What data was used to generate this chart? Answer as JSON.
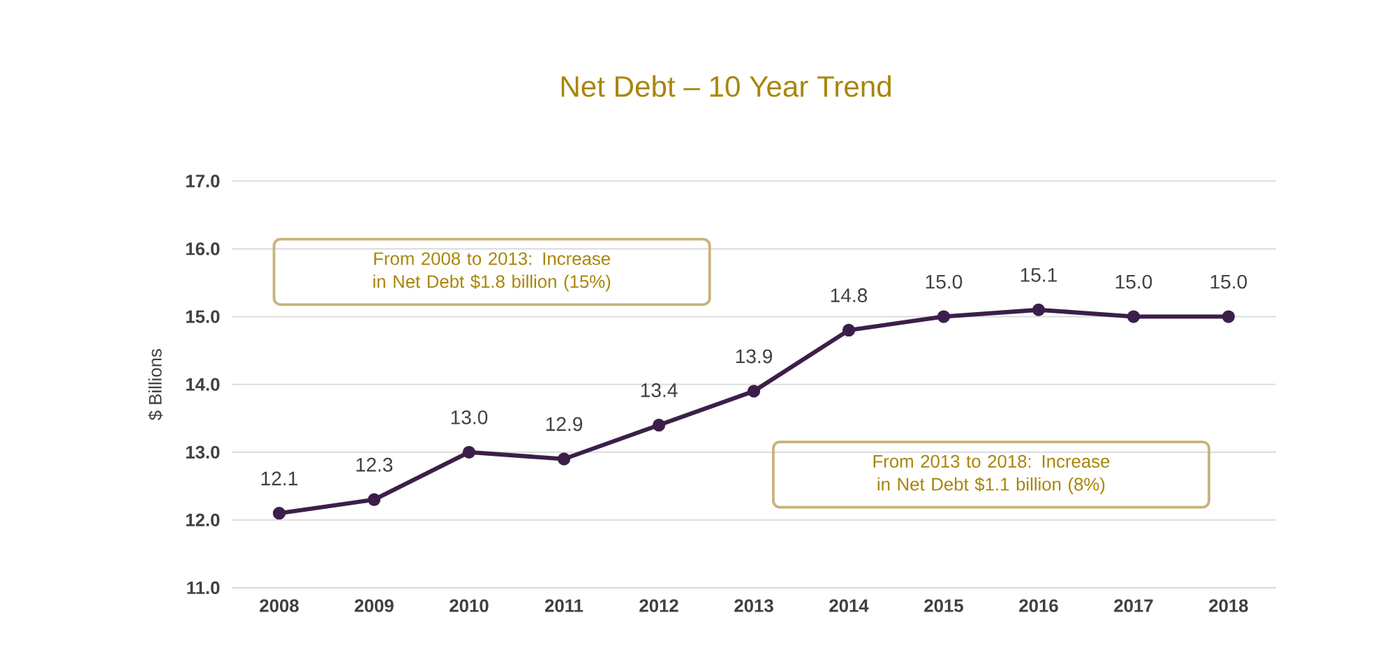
{
  "chart_data": {
    "type": "line",
    "title": "Net Debt – 10 Year Trend",
    "ylabel": "$ Billions",
    "categories": [
      "2008",
      "2009",
      "2010",
      "2011",
      "2012",
      "2013",
      "2014",
      "2015",
      "2016",
      "2017",
      "2018"
    ],
    "series": [
      {
        "color": "#3b1f4a",
        "values": [
          12.1,
          12.3,
          13.0,
          12.9,
          13.4,
          13.9,
          14.8,
          15.0,
          15.1,
          15.0,
          15.0
        ],
        "value_labels": [
          "12.1",
          "12.3",
          "13.0",
          "12.9",
          "13.4",
          "13.9",
          "14.8",
          "15.0",
          "15.1",
          "15.0",
          "15.0"
        ]
      }
    ],
    "ylim": [
      11,
      17
    ],
    "yticks": [
      {
        "value": 11,
        "label": "11.0"
      },
      {
        "value": 12,
        "label": "12.0"
      },
      {
        "value": 13,
        "label": "13.0"
      },
      {
        "value": 14,
        "label": "14.0"
      },
      {
        "value": 15,
        "label": "15.0"
      },
      {
        "value": 16,
        "label": "16.0"
      },
      {
        "value": 17,
        "label": "17.0"
      }
    ],
    "grid": "y",
    "marker": "circle",
    "line_style": "solid",
    "annotations": [
      "From 2008 to 2013: Increase in Net Debt $1.8 billion (15%)",
      "From 2013 to 2018: Increase in Net Debt $1.1 billion (8%)"
    ]
  }
}
